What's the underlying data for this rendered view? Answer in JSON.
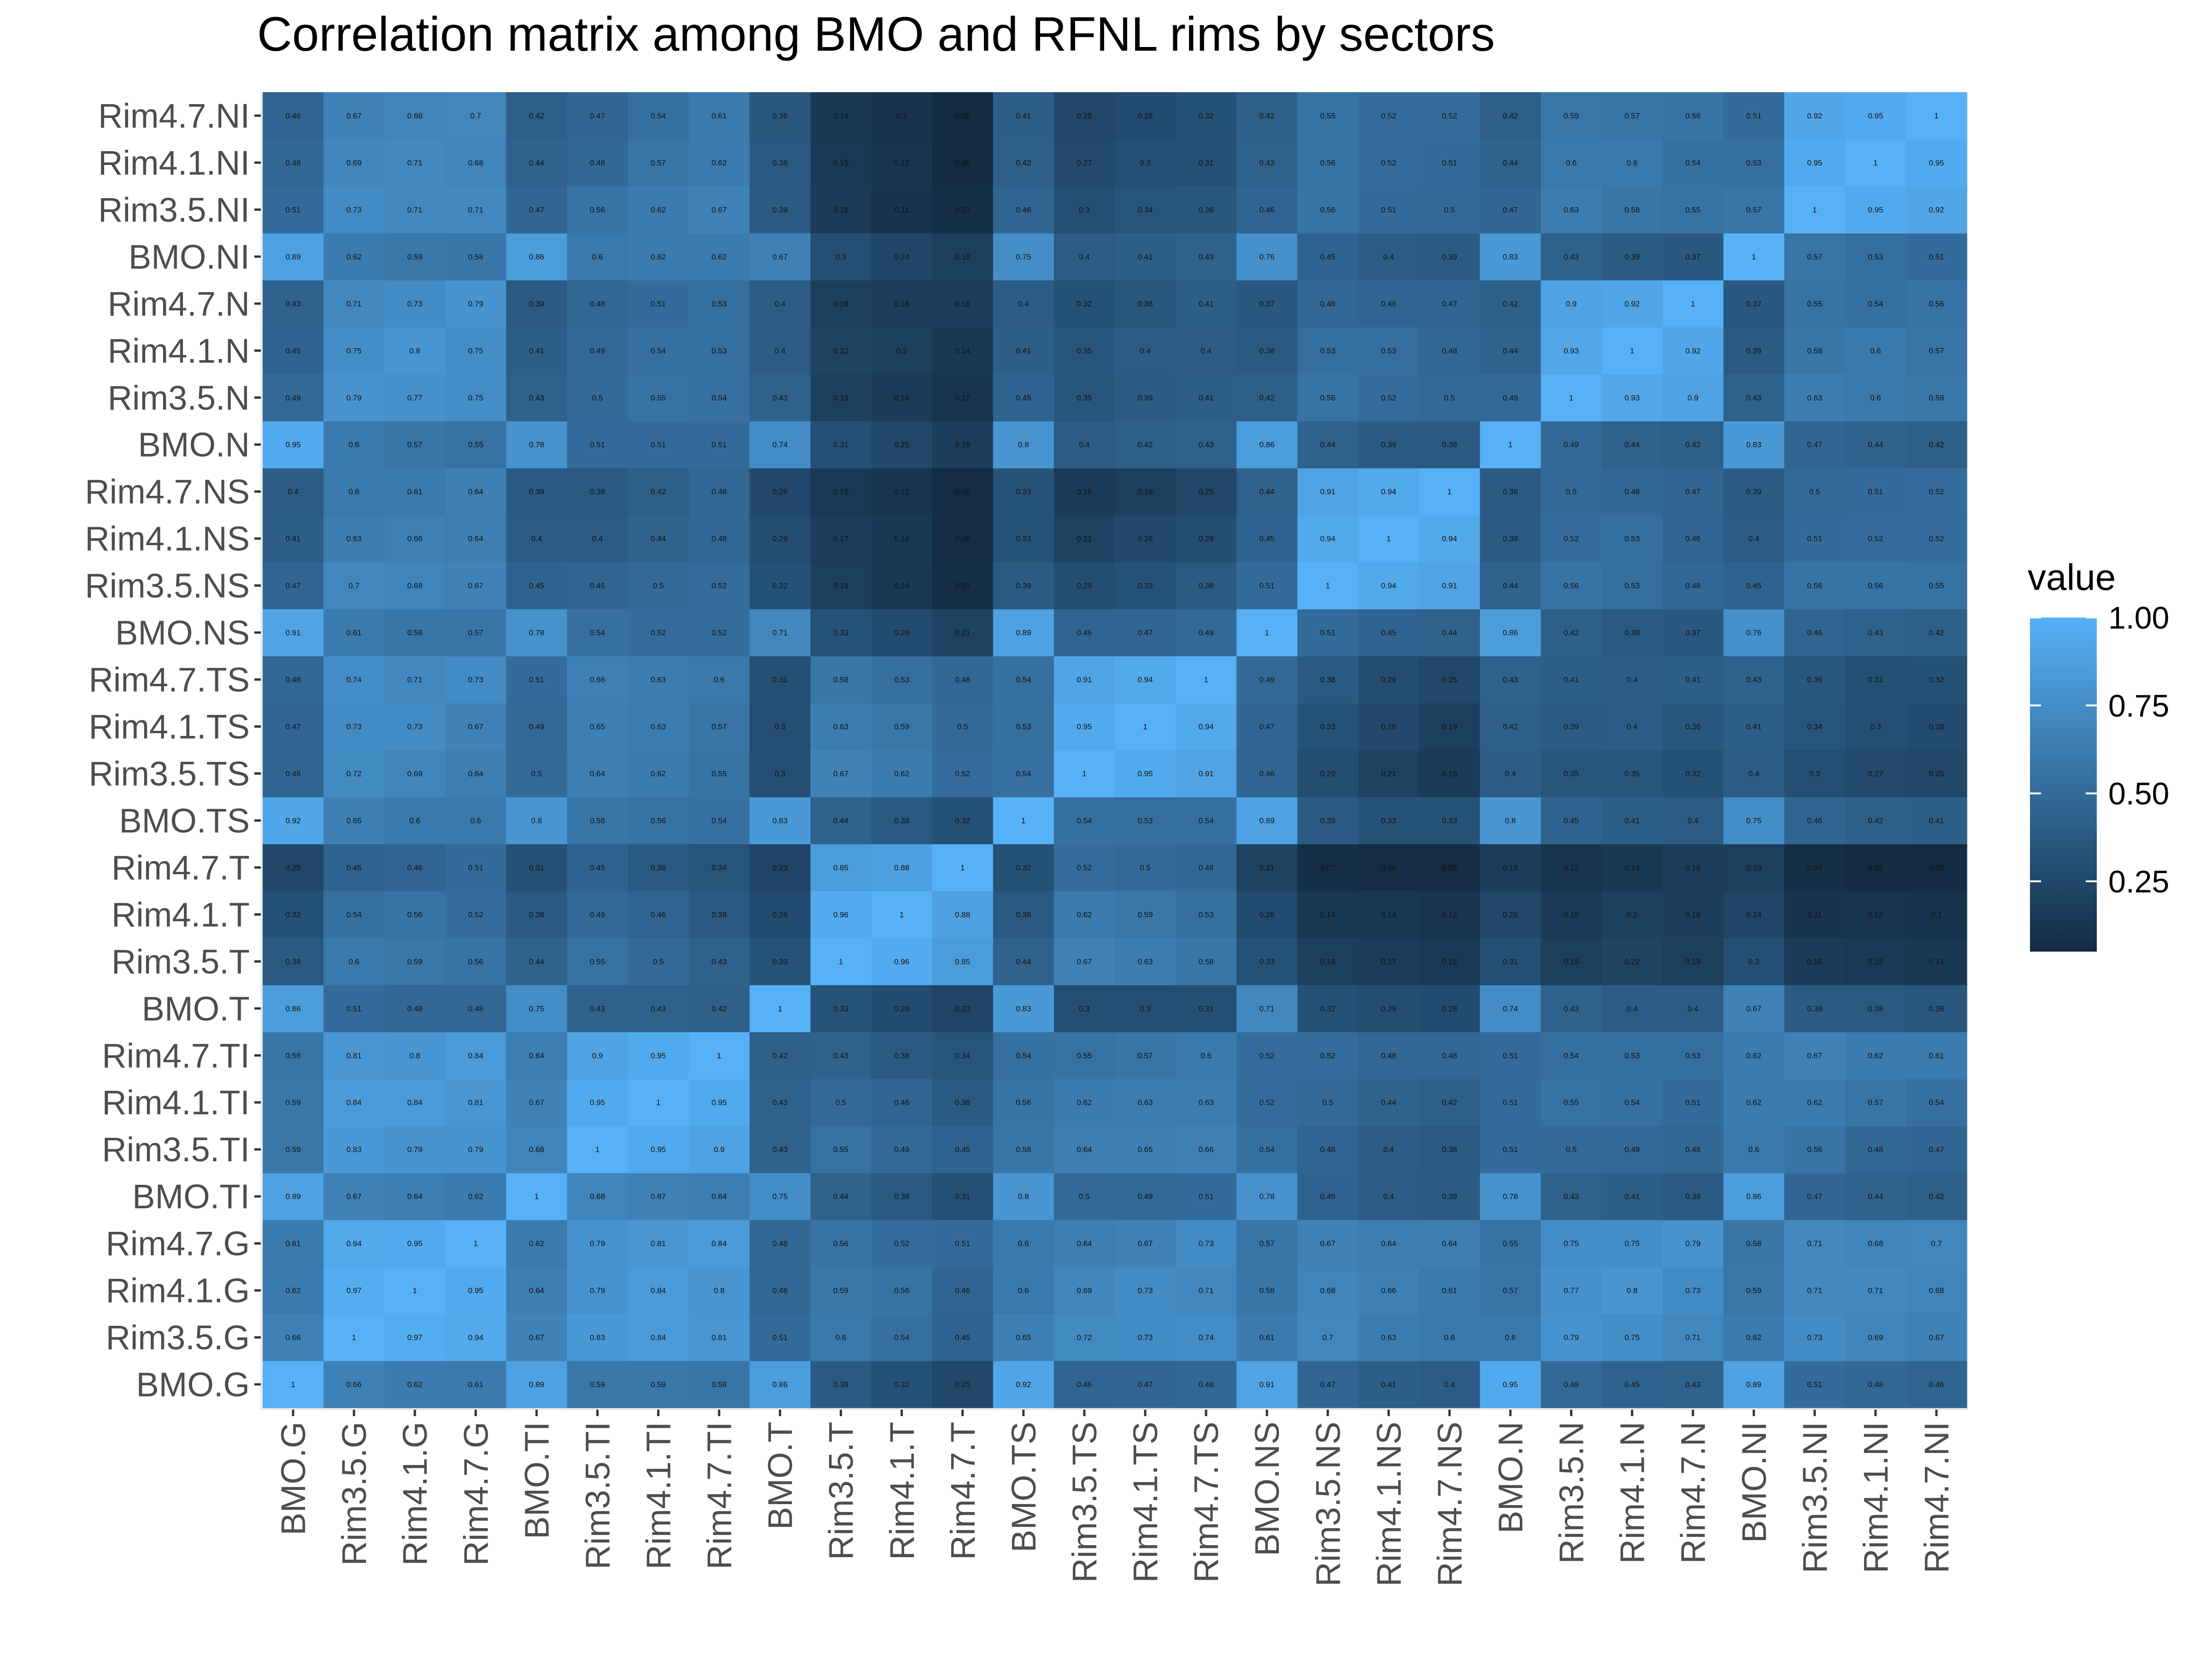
{
  "chart_data": {
    "type": "heatmap",
    "title": "Correlation matrix among BMO and RFNL rims by sectors",
    "xlabel": "",
    "ylabel": "",
    "categories": [
      "BMO.G",
      "Rim3.5.G",
      "Rim4.1.G",
      "Rim4.7.G",
      "BMO.TI",
      "Rim3.5.TI",
      "Rim4.1.TI",
      "Rim4.7.TI",
      "BMO.T",
      "Rim3.5.T",
      "Rim4.1.T",
      "Rim4.7.T",
      "BMO.TS",
      "Rim3.5.TS",
      "Rim4.1.TS",
      "Rim4.7.TS",
      "BMO.NS",
      "Rim3.5.NS",
      "Rim4.1.NS",
      "Rim4.7.NS",
      "BMO.N",
      "Rim3.5.N",
      "Rim4.1.N",
      "Rim4.7.N",
      "BMO.NI",
      "Rim3.5.NI",
      "Rim4.1.NI",
      "Rim4.7.NI"
    ],
    "values": [
      [
        1,
        0.66,
        0.62,
        0.61,
        0.89,
        0.59,
        0.59,
        0.58,
        0.86,
        0.38,
        0.32,
        0.25,
        0.92,
        0.46,
        0.47,
        0.48,
        0.91,
        0.47,
        0.41,
        0.4,
        0.95,
        0.49,
        0.45,
        0.43,
        0.89,
        0.51,
        0.48,
        0.46
      ],
      [
        0.66,
        1,
        0.97,
        0.94,
        0.67,
        0.83,
        0.84,
        0.81,
        0.51,
        0.6,
        0.54,
        0.45,
        0.65,
        0.72,
        0.73,
        0.74,
        0.61,
        0.7,
        0.63,
        0.6,
        0.6,
        0.79,
        0.75,
        0.71,
        0.62,
        0.73,
        0.69,
        0.67
      ],
      [
        0.62,
        0.97,
        1,
        0.95,
        0.64,
        0.79,
        0.84,
        0.8,
        0.48,
        0.59,
        0.56,
        0.46,
        0.6,
        0.69,
        0.73,
        0.71,
        0.58,
        0.68,
        0.66,
        0.61,
        0.57,
        0.77,
        0.8,
        0.73,
        0.59,
        0.71,
        0.71,
        0.68
      ],
      [
        0.61,
        0.94,
        0.95,
        1,
        0.62,
        0.79,
        0.81,
        0.84,
        0.48,
        0.56,
        0.52,
        0.51,
        0.6,
        0.64,
        0.67,
        0.73,
        0.57,
        0.67,
        0.64,
        0.64,
        0.55,
        0.75,
        0.75,
        0.79,
        0.58,
        0.71,
        0.68,
        0.7
      ],
      [
        0.89,
        0.67,
        0.64,
        0.62,
        1,
        0.68,
        0.67,
        0.64,
        0.75,
        0.44,
        0.38,
        0.31,
        0.8,
        0.5,
        0.49,
        0.51,
        0.78,
        0.45,
        0.4,
        0.39,
        0.78,
        0.43,
        0.41,
        0.39,
        0.86,
        0.47,
        0.44,
        0.42
      ],
      [
        0.59,
        0.83,
        0.79,
        0.79,
        0.68,
        1,
        0.95,
        0.9,
        0.43,
        0.55,
        0.49,
        0.45,
        0.58,
        0.64,
        0.65,
        0.66,
        0.54,
        0.46,
        0.4,
        0.38,
        0.51,
        0.5,
        0.49,
        0.48,
        0.6,
        0.56,
        0.48,
        0.47
      ],
      [
        0.59,
        0.84,
        0.84,
        0.81,
        0.67,
        0.95,
        1,
        0.95,
        0.43,
        0.5,
        0.46,
        0.38,
        0.56,
        0.62,
        0.63,
        0.63,
        0.52,
        0.5,
        0.44,
        0.42,
        0.51,
        0.55,
        0.54,
        0.51,
        0.62,
        0.62,
        0.57,
        0.54
      ],
      [
        0.58,
        0.81,
        0.8,
        0.84,
        0.64,
        0.9,
        0.95,
        1,
        0.42,
        0.43,
        0.38,
        0.34,
        0.54,
        0.55,
        0.57,
        0.6,
        0.52,
        0.52,
        0.48,
        0.48,
        0.51,
        0.54,
        0.53,
        0.53,
        0.62,
        0.67,
        0.62,
        0.61
      ],
      [
        0.86,
        0.51,
        0.48,
        0.48,
        0.75,
        0.43,
        0.43,
        0.42,
        1,
        0.33,
        0.28,
        0.23,
        0.83,
        0.3,
        0.3,
        0.31,
        0.71,
        0.32,
        0.29,
        0.26,
        0.74,
        0.43,
        0.4,
        0.4,
        0.67,
        0.39,
        0.38,
        0.36
      ],
      [
        0.38,
        0.6,
        0.59,
        0.56,
        0.44,
        0.55,
        0.5,
        0.43,
        0.33,
        1,
        0.96,
        0.85,
        0.44,
        0.67,
        0.63,
        0.58,
        0.33,
        0.19,
        0.17,
        0.15,
        0.31,
        0.19,
        0.22,
        0.19,
        0.3,
        0.16,
        0.15,
        0.14
      ],
      [
        0.32,
        0.54,
        0.56,
        0.52,
        0.38,
        0.49,
        0.46,
        0.38,
        0.28,
        0.96,
        1,
        0.88,
        0.38,
        0.62,
        0.59,
        0.53,
        0.28,
        0.14,
        0.14,
        0.12,
        0.25,
        0.16,
        0.2,
        0.18,
        0.24,
        0.11,
        0.12,
        0.1
      ],
      [
        0.25,
        0.45,
        0.46,
        0.51,
        0.31,
        0.45,
        0.38,
        0.34,
        0.23,
        0.85,
        0.88,
        1,
        0.32,
        0.52,
        0.5,
        0.48,
        0.21,
        0.07,
        0.06,
        0.06,
        0.18,
        0.12,
        0.14,
        0.18,
        0.19,
        0.07,
        0.05,
        0.05
      ],
      [
        0.92,
        0.65,
        0.6,
        0.6,
        0.8,
        0.58,
        0.56,
        0.54,
        0.83,
        0.44,
        0.38,
        0.32,
        1,
        0.54,
        0.53,
        0.54,
        0.89,
        0.39,
        0.33,
        0.33,
        0.8,
        0.45,
        0.41,
        0.4,
        0.75,
        0.46,
        0.42,
        0.41
      ],
      [
        0.46,
        0.72,
        0.69,
        0.64,
        0.5,
        0.64,
        0.62,
        0.55,
        0.3,
        0.67,
        0.62,
        0.52,
        0.54,
        1,
        0.95,
        0.91,
        0.46,
        0.29,
        0.21,
        0.16,
        0.4,
        0.35,
        0.35,
        0.32,
        0.4,
        0.3,
        0.27,
        0.25
      ],
      [
        0.47,
        0.73,
        0.73,
        0.67,
        0.49,
        0.65,
        0.63,
        0.57,
        0.3,
        0.63,
        0.59,
        0.5,
        0.53,
        0.95,
        1,
        0.94,
        0.47,
        0.33,
        0.26,
        0.19,
        0.42,
        0.39,
        0.4,
        0.36,
        0.41,
        0.34,
        0.3,
        0.28
      ],
      [
        0.48,
        0.74,
        0.71,
        0.73,
        0.51,
        0.66,
        0.63,
        0.6,
        0.31,
        0.58,
        0.53,
        0.48,
        0.54,
        0.91,
        0.94,
        1,
        0.49,
        0.38,
        0.29,
        0.25,
        0.43,
        0.41,
        0.4,
        0.41,
        0.43,
        0.36,
        0.31,
        0.32
      ],
      [
        0.91,
        0.61,
        0.58,
        0.57,
        0.78,
        0.54,
        0.52,
        0.52,
        0.71,
        0.33,
        0.28,
        0.21,
        0.89,
        0.46,
        0.47,
        0.49,
        1,
        0.51,
        0.45,
        0.44,
        0.86,
        0.42,
        0.38,
        0.37,
        0.76,
        0.46,
        0.43,
        0.42
      ],
      [
        0.47,
        0.7,
        0.68,
        0.67,
        0.45,
        0.46,
        0.5,
        0.52,
        0.32,
        0.19,
        0.14,
        0.07,
        0.39,
        0.29,
        0.33,
        0.38,
        0.51,
        1,
        0.94,
        0.91,
        0.44,
        0.56,
        0.53,
        0.48,
        0.45,
        0.56,
        0.56,
        0.55
      ],
      [
        0.41,
        0.63,
        0.66,
        0.64,
        0.4,
        0.4,
        0.44,
        0.48,
        0.29,
        0.17,
        0.14,
        0.06,
        0.33,
        0.21,
        0.26,
        0.29,
        0.45,
        0.94,
        1,
        0.94,
        0.39,
        0.52,
        0.53,
        0.46,
        0.4,
        0.51,
        0.52,
        0.52
      ],
      [
        0.4,
        0.6,
        0.61,
        0.64,
        0.39,
        0.38,
        0.42,
        0.48,
        0.28,
        0.15,
        0.12,
        0.06,
        0.33,
        0.16,
        0.19,
        0.25,
        0.44,
        0.91,
        0.94,
        1,
        0.38,
        0.5,
        0.48,
        0.47,
        0.39,
        0.5,
        0.51,
        0.52
      ],
      [
        0.95,
        0.6,
        0.57,
        0.55,
        0.78,
        0.51,
        0.51,
        0.51,
        0.74,
        0.31,
        0.25,
        0.18,
        0.8,
        0.4,
        0.42,
        0.43,
        0.86,
        0.44,
        0.39,
        0.38,
        1,
        0.49,
        0.44,
        0.42,
        0.83,
        0.47,
        0.44,
        0.42
      ],
      [
        0.49,
        0.79,
        0.77,
        0.75,
        0.43,
        0.5,
        0.55,
        0.54,
        0.43,
        0.19,
        0.16,
        0.12,
        0.45,
        0.35,
        0.39,
        0.41,
        0.42,
        0.56,
        0.52,
        0.5,
        0.49,
        1,
        0.93,
        0.9,
        0.43,
        0.63,
        0.6,
        0.59
      ],
      [
        0.45,
        0.75,
        0.8,
        0.75,
        0.41,
        0.49,
        0.54,
        0.53,
        0.4,
        0.22,
        0.2,
        0.14,
        0.41,
        0.35,
        0.4,
        0.4,
        0.38,
        0.53,
        0.53,
        0.48,
        0.44,
        0.93,
        1,
        0.92,
        0.39,
        0.58,
        0.6,
        0.57
      ],
      [
        0.43,
        0.71,
        0.73,
        0.79,
        0.39,
        0.48,
        0.51,
        0.53,
        0.4,
        0.19,
        0.18,
        0.18,
        0.4,
        0.32,
        0.36,
        0.41,
        0.37,
        0.48,
        0.46,
        0.47,
        0.42,
        0.9,
        0.92,
        1,
        0.37,
        0.55,
        0.54,
        0.56
      ],
      [
        0.89,
        0.62,
        0.59,
        0.58,
        0.86,
        0.6,
        0.62,
        0.62,
        0.67,
        0.3,
        0.24,
        0.19,
        0.75,
        0.4,
        0.41,
        0.43,
        0.76,
        0.45,
        0.4,
        0.39,
        0.83,
        0.43,
        0.39,
        0.37,
        1,
        0.57,
        0.53,
        0.51
      ],
      [
        0.51,
        0.73,
        0.71,
        0.71,
        0.47,
        0.56,
        0.62,
        0.67,
        0.39,
        0.16,
        0.11,
        0.07,
        0.46,
        0.3,
        0.34,
        0.36,
        0.46,
        0.56,
        0.51,
        0.5,
        0.47,
        0.63,
        0.58,
        0.55,
        0.57,
        1,
        0.95,
        0.92
      ],
      [
        0.48,
        0.69,
        0.71,
        0.68,
        0.44,
        0.48,
        0.57,
        0.62,
        0.38,
        0.15,
        0.12,
        0.05,
        0.42,
        0.27,
        0.3,
        0.31,
        0.43,
        0.56,
        0.52,
        0.51,
        0.44,
        0.6,
        0.6,
        0.54,
        0.53,
        0.95,
        1,
        0.95
      ],
      [
        0.46,
        0.67,
        0.68,
        0.7,
        0.42,
        0.47,
        0.54,
        0.61,
        0.36,
        0.14,
        0.1,
        0.05,
        0.41,
        0.25,
        0.28,
        0.32,
        0.42,
        0.55,
        0.52,
        0.52,
        0.42,
        0.59,
        0.57,
        0.56,
        0.51,
        0.92,
        0.95,
        1
      ]
    ],
    "legend": {
      "title": "value",
      "ticks": [
        "0.25",
        "0.50",
        "0.75",
        "1.00"
      ],
      "range": [
        0.05,
        1
      ],
      "low_color": "#132b43",
      "high_color": "#56b1f7",
      "placement": "right"
    },
    "grid": true
  }
}
